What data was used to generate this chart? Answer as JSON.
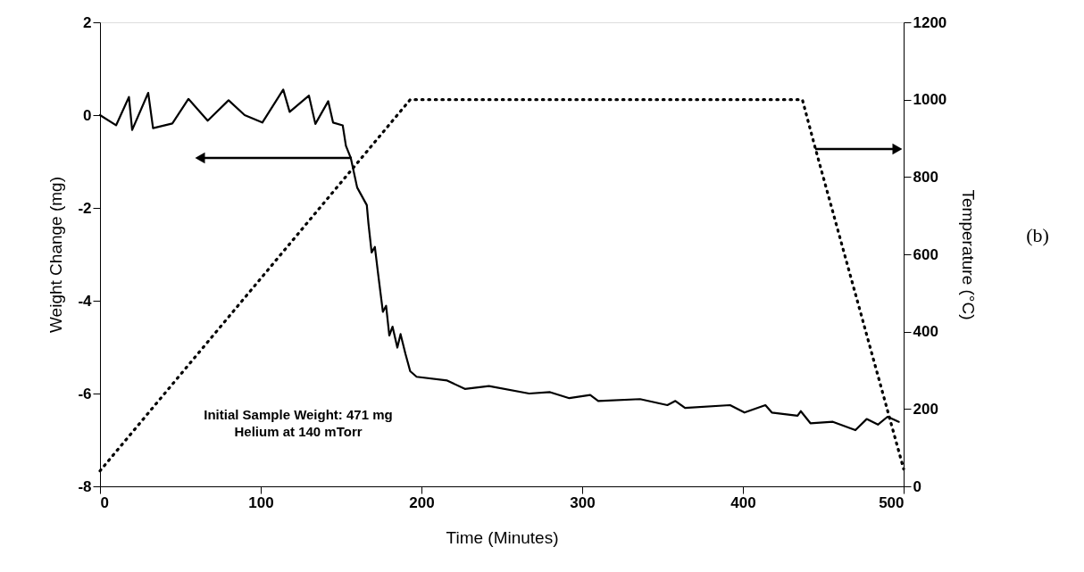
{
  "chart_data": {
    "type": "line",
    "xlabel": "Time (Minutes)",
    "ylabel": "Weight Change (mg)",
    "y2label": "Temperature (°C)",
    "xlim": [
      0,
      500
    ],
    "xticks": [
      0,
      100,
      200,
      300,
      400,
      500
    ],
    "ylim": [
      -8,
      2
    ],
    "yticks": [
      -8,
      -6,
      -4,
      -2,
      0,
      2
    ],
    "y2lim": [
      0,
      1200
    ],
    "y2ticks": [
      0,
      200,
      400,
      600,
      800,
      1000,
      1200
    ],
    "grid": false,
    "annotations": [
      "Initial Sample Weight:  471 mg",
      "Helium at 140 mTorr",
      "(b)"
    ],
    "series": [
      {
        "color": "#000000",
        "line_style": "solid",
        "x": [
          0,
          10,
          18,
          20,
          30,
          33,
          45,
          55,
          67,
          80,
          90,
          101,
          114,
          118,
          130,
          134,
          142,
          145,
          151,
          153,
          156,
          160,
          166,
          167,
          169,
          171,
          173,
          176,
          178,
          180,
          182,
          185,
          187,
          190,
          193,
          197,
          216,
          227,
          242,
          267,
          280,
          292,
          305,
          310,
          336,
          353,
          358,
          364,
          392,
          401,
          414,
          418,
          434,
          436,
          442,
          456,
          470,
          477,
          484,
          490,
          497
        ],
        "values": [
          0,
          -0.22,
          0.39,
          -0.32,
          0.48,
          -0.28,
          -0.18,
          0.35,
          -0.12,
          0.32,
          0.0,
          -0.16,
          0.55,
          0.07,
          0.42,
          -0.19,
          0.3,
          -0.16,
          -0.22,
          -0.66,
          -0.92,
          -1.56,
          -1.94,
          -2.33,
          -2.96,
          -2.84,
          -3.41,
          -4.24,
          -4.11,
          -4.75,
          -4.56,
          -5.01,
          -4.72,
          -5.14,
          -5.52,
          -5.64,
          -5.72,
          -5.9,
          -5.84,
          -6.0,
          -5.97,
          -6.1,
          -6.03,
          -6.16,
          -6.12,
          -6.25,
          -6.16,
          -6.31,
          -6.25,
          -6.41,
          -6.25,
          -6.41,
          -6.48,
          -6.38,
          -6.64,
          -6.61,
          -6.79,
          -6.55,
          -6.67,
          -6.5,
          -6.61
        ]
      },
      {
        "axis": "y2",
        "color": "#000000",
        "line_style": "dotted",
        "x": [
          0,
          193,
          437,
          445,
          500
        ],
        "values": [
          40,
          1000,
          1000,
          875,
          45
        ]
      }
    ]
  }
}
